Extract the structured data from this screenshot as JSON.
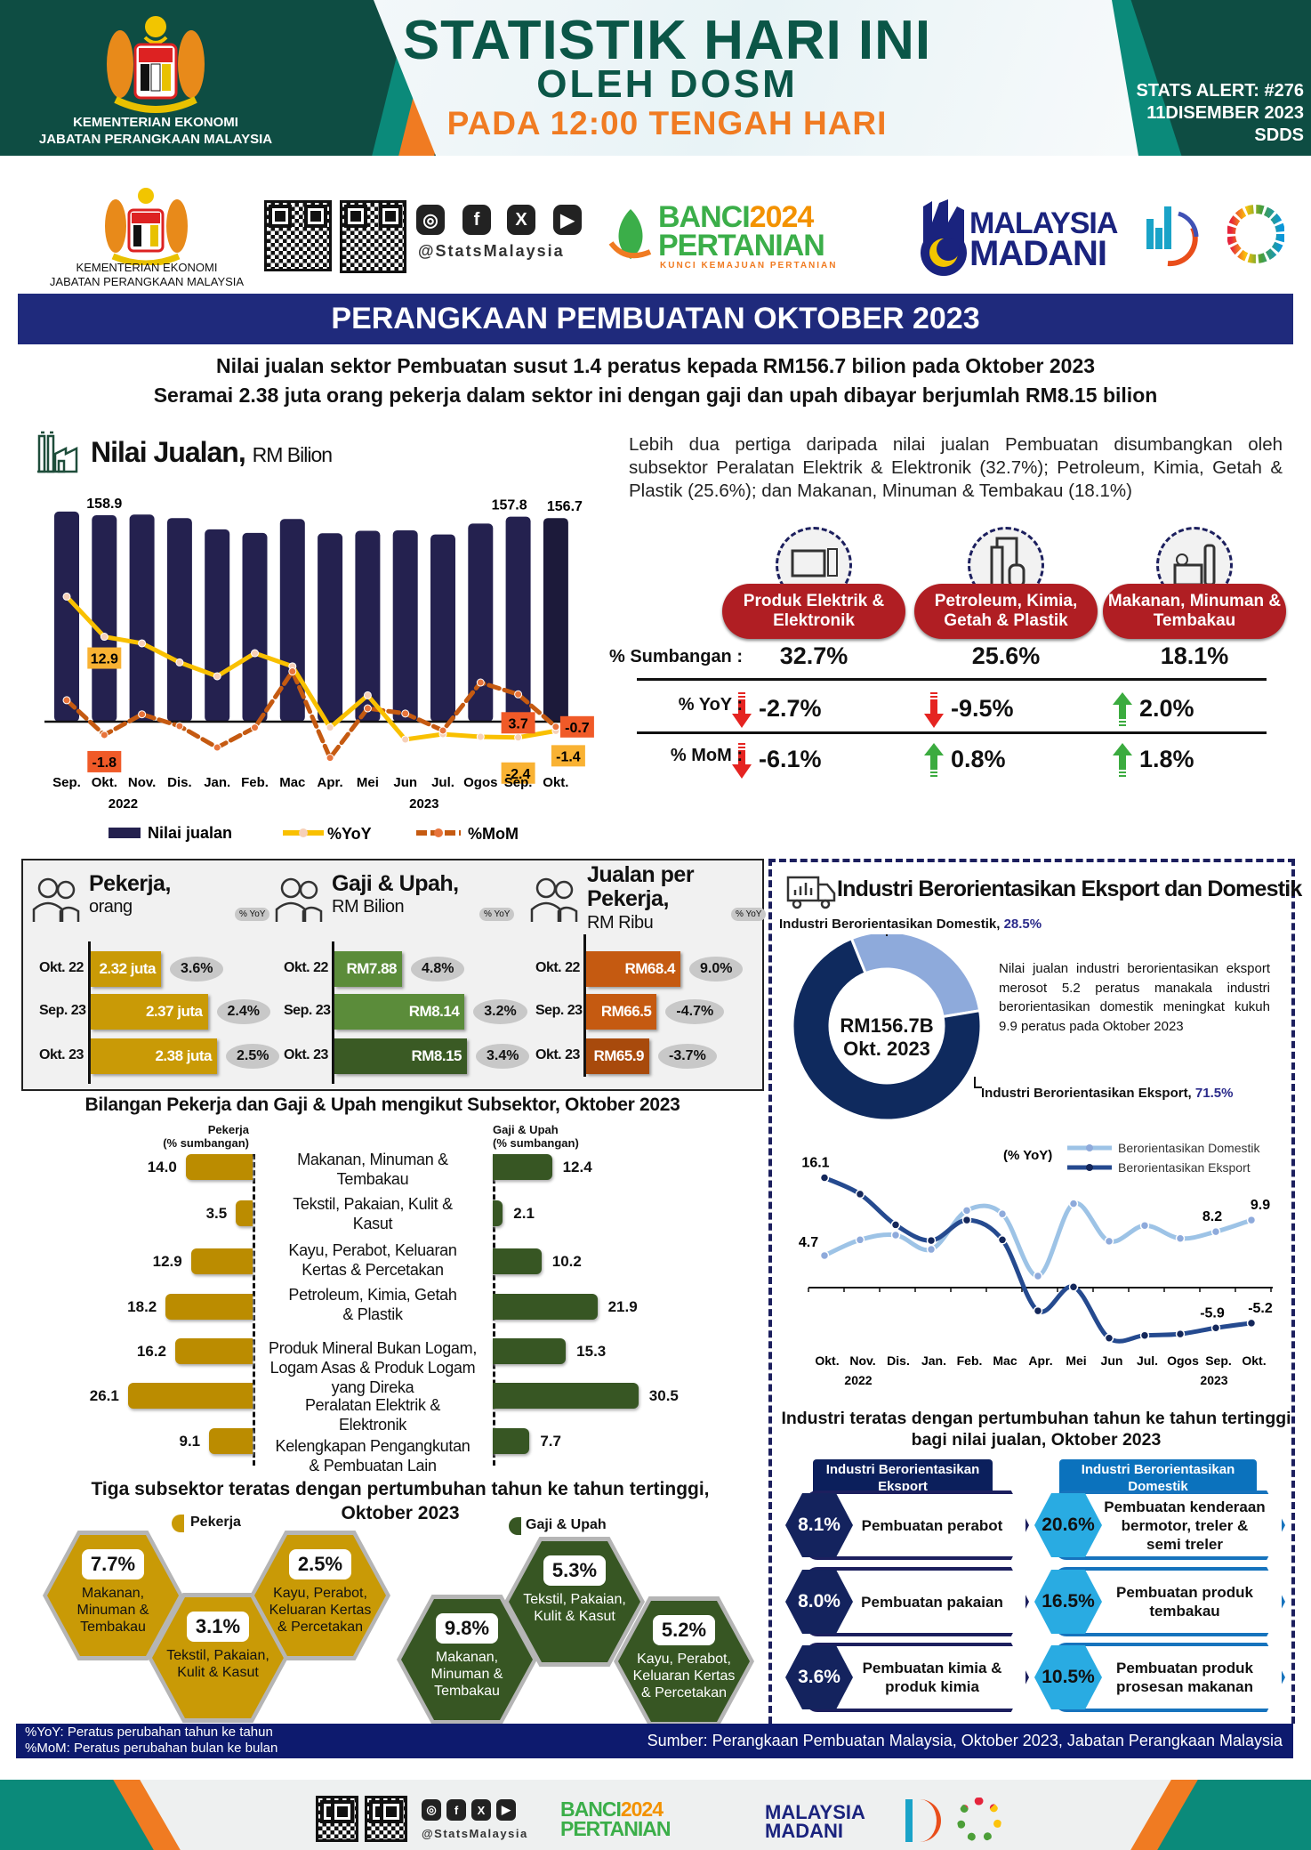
{
  "header": {
    "ministry_line1": "KEMENTERIAN EKONOMI",
    "ministry_line2": "JABATAN PERANGKAAN MALAYSIA",
    "title_line1": "STATISTIK HARI INI",
    "title_line2": "OLEH DOSM",
    "title_line3": "PADA 12:00 TENGAH HARI",
    "alert": "STATS ALERT: #276",
    "date": "11DISEMBER 2023",
    "sdds": "SDDS"
  },
  "logos": {
    "ministry_line1": "KEMENTERIAN EKONOMI",
    "ministry_line2": "JABATAN PERANGKAAN MALAYSIA",
    "handle": "@StatsMalaysia",
    "banci_word": "BANCI",
    "banci_year": "2024",
    "banci_name": "PERTANIAN",
    "banci_tagline": "KUNCI KEMAJUAN PERTANIAN",
    "madani_line1": "MALAYSIA",
    "madani_line2": "MADANI"
  },
  "main_title": "PERANGKAAN PEMBUATAN OKTOBER 2023",
  "headlines": [
    "Nilai jualan sektor Pembuatan susut 1.4 peratus kepada RM156.7 bilion pada Oktober 2023",
    "Seramai 2.38 juta orang pekerja dalam sektor ini dengan gaji dan upah dibayar berjumlah RM8.15 bilion"
  ],
  "sales": {
    "title": "Nilai Jualan,",
    "unit": "RM Bilion",
    "legend": [
      "Nilai jualan",
      "%YoY",
      "%MoM"
    ]
  },
  "subsector_summary": {
    "text": "Lebih dua pertiga daripada nilai jualan Pembuatan disumbangkan oleh subsektor Peralatan Elektrik & Elektronik (32.7%); Petroleum, Kimia, Getah & Plastik (25.6%); dan Makanan, Minuman & Tembakau (18.1%)",
    "row_labels": [
      "% Sumbangan :",
      "% YoY :",
      "% MoM :"
    ],
    "categories": [
      {
        "name": "Produk  Elektrik & Elektronik",
        "share": "32.7%",
        "yoy": "-2.7%",
        "yoy_dir": "down",
        "mom": "-6.1%",
        "mom_dir": "down"
      },
      {
        "name": "Petroleum, Kimia, Getah & Plastik",
        "share": "25.6%",
        "yoy": "-9.5%",
        "yoy_dir": "down",
        "mom": "0.8%",
        "mom_dir": "up"
      },
      {
        "name": "Makanan, Minuman & Tembakau",
        "share": "18.1%",
        "yoy": "2.0%",
        "yoy_dir": "up",
        "mom": "1.8%",
        "mom_dir": "up"
      }
    ]
  },
  "kpi": {
    "yoy_tag": "% YoY",
    "columns": [
      {
        "title": "Pekerja,",
        "unit": "orang",
        "rows": [
          {
            "period": "Okt. 22",
            "value": 2.32,
            "label": "2.32 juta",
            "yoy": "3.6%"
          },
          {
            "period": "Sep. 23",
            "value": 2.37,
            "label": "2.37 juta",
            "yoy": "2.4%"
          },
          {
            "period": "Okt. 23",
            "value": 2.38,
            "label": "2.38 juta",
            "yoy": "2.5%"
          }
        ]
      },
      {
        "title": "Gaji & Upah,",
        "unit": "RM Bilion",
        "rows": [
          {
            "period": "Okt. 22",
            "value": 7.88,
            "label": "RM7.88",
            "yoy": "4.8%"
          },
          {
            "period": "Sep. 23",
            "value": 8.14,
            "label": "RM8.14",
            "yoy": "3.2%"
          },
          {
            "period": "Okt. 23",
            "value": 8.15,
            "label": "RM8.15",
            "yoy": "3.4%"
          }
        ]
      },
      {
        "title": "Jualan per Pekerja,",
        "unit": "RM Ribu",
        "rows": [
          {
            "period": "Okt. 22",
            "value": 68.4,
            "label": "RM68.4",
            "yoy": "9.0%"
          },
          {
            "period": "Sep. 23",
            "value": 66.5,
            "label": "RM66.5",
            "yoy": "-4.7%"
          },
          {
            "period": "Okt. 23",
            "value": 65.9,
            "label": "RM65.9",
            "yoy": "-3.7%"
          }
        ]
      }
    ]
  },
  "top3": {
    "title": "Tiga subsektor teratas dengan pertumbuhan tahun ke tahun tertinggi, Oktober 2023",
    "pekerja_legend": "Pekerja",
    "gaji_legend": "Gaji & Upah",
    "pekerja": [
      {
        "pct": "7.7%",
        "name": "Makanan, Minuman & Tembakau"
      },
      {
        "pct": "3.1%",
        "name": "Tekstil, Pakaian, Kulit & Kasut"
      },
      {
        "pct": "2.5%",
        "name": "Kayu, Perabot, Keluaran Kertas & Percetakan"
      }
    ],
    "gaji": [
      {
        "pct": "9.8%",
        "name": "Makanan, Minuman & Tembakau"
      },
      {
        "pct": "5.3%",
        "name": "Tekstil, Pakaian, Kulit & Kasut"
      },
      {
        "pct": "5.2%",
        "name": "Kayu, Perabot, Keluaran Kertas & Percetakan"
      }
    ]
  },
  "export_domestic": {
    "title": "Industri Berorientasikan Eksport dan Domestik",
    "domestic_label": "Industri Berorientasikan Domestik,",
    "domestic_share": "28.5%",
    "export_label": "Industri Berorientasikan Eksport,",
    "export_share": "71.5%",
    "donut_center_line1": "RM156.7B",
    "donut_center_line2": "Okt. 2023",
    "note": "Nilai jualan industri berorientasikan eksport merosot 5.2 peratus manakala industri berorientasikan domestik meningkat kukuh 9.9 peratus pada Oktober 2023"
  },
  "top_industries": {
    "title": "Industri teratas dengan pertumbuhan tahun ke tahun tertinggi bagi nilai jualan, Oktober 2023",
    "export_header": "Industri Berorientasikan Eksport",
    "domestic_header": "Industri Berorientasikan Domestik",
    "export": [
      {
        "pct": "8.1%",
        "name": "Pembuatan perabot"
      },
      {
        "pct": "8.0%",
        "name": "Pembuatan pakaian"
      },
      {
        "pct": "3.6%",
        "name": "Pembuatan kimia & produk kimia"
      }
    ],
    "domestic": [
      {
        "pct": "20.6%",
        "name": "Pembuatan kenderaan bermotor, treler & semi treler"
      },
      {
        "pct": "16.5%",
        "name": "Pembuatan produk tembakau"
      },
      {
        "pct": "10.5%",
        "name": "Pembuatan produk prosesan makanan"
      }
    ]
  },
  "footer": {
    "yoy_note": "%YoY: Peratus perubahan tahun ke tahun",
    "mom_note": "%MoM: Peratus perubahan bulan ke bulan",
    "source": "Sumber: Perangkaan Pembuatan Malaysia, Oktober 2023, Jabatan Perangkaan Malaysia"
  },
  "colors": {
    "navy": "#1f2a7c",
    "bar": "#24214f",
    "yoy": "#f9c000",
    "mom": "#c55a11",
    "export": "#254a8f",
    "domestic": "#9dc3e6",
    "gold": "#bb8c00",
    "green": "#375623",
    "red": "#b01e23"
  },
  "chart_data": [
    {
      "type": "bar+line",
      "title": "Nilai Jualan, RM Bilion",
      "categories": [
        "Sep.",
        "Okt.",
        "Nov.",
        "Dis.",
        "Jan.",
        "Feb.",
        "Mac",
        "Apr.",
        "Mei",
        "Jun",
        "Jul.",
        "Ogos",
        "Sep.",
        "Okt."
      ],
      "year_labels": [
        {
          "index": 2,
          "text": "2022"
        },
        {
          "index": 10,
          "text": "2023"
        }
      ],
      "series": [
        {
          "name": "Nilai jualan",
          "kind": "bar",
          "values": [
            161.7,
            158.9,
            159.4,
            156.7,
            148.0,
            145.3,
            156.0,
            145.0,
            146.9,
            147.3,
            144.1,
            152.5,
            157.8,
            156.7
          ],
          "labeled": [
            1,
            12,
            13
          ]
        },
        {
          "name": "%YoY",
          "kind": "line",
          "values": [
            19.0,
            12.9,
            11.9,
            9.0,
            6.9,
            10.4,
            8.4,
            -0.9,
            4.0,
            -2.7,
            -1.9,
            -2.3,
            -2.4,
            -1.4
          ],
          "labeled": [
            1,
            12,
            13
          ]
        },
        {
          "name": "%MoM",
          "kind": "line-dashed",
          "values": [
            2.9,
            -1.8,
            1.0,
            -0.6,
            -3.5,
            -0.8,
            6.8,
            -4.9,
            1.8,
            1.1,
            -1.2,
            5.3,
            3.7,
            -0.7
          ],
          "labeled": [
            1,
            12,
            13
          ]
        }
      ],
      "legend": "bottom"
    },
    {
      "type": "bar",
      "title": "Bilangan Pekerja dan Gaji & Upah mengikut Subsektor, Oktober 2023",
      "left_header": [
        "Pekerja",
        "(% sumbangan)"
      ],
      "right_header": [
        "Gaji & Upah",
        "(% sumbangan)"
      ],
      "categories": [
        [
          "Makanan, Minuman &",
          "Tembakau"
        ],
        [
          "Tekstil, Pakaian, Kulit &",
          "Kasut"
        ],
        [
          "Kayu, Perabot, Keluaran",
          "Kertas & Percetakan"
        ],
        [
          "Petroleum, Kimia, Getah",
          "& Plastik"
        ],
        [
          "Produk Mineral Bukan Logam,",
          "Logam Asas & Produk Logam",
          "yang Direka"
        ],
        [
          "Peralatan Elektrik &",
          "Elektronik"
        ],
        [
          "Kelengkapan Pengangkutan",
          "& Pembuatan Lain"
        ]
      ],
      "series": [
        {
          "name": "Pekerja (% sumbangan)",
          "values": [
            14.0,
            3.5,
            12.9,
            18.2,
            16.2,
            26.1,
            9.1
          ]
        },
        {
          "name": "Gaji & Upah (% sumbangan)",
          "values": [
            12.4,
            2.1,
            10.2,
            21.9,
            15.3,
            30.5,
            7.7
          ]
        }
      ]
    },
    {
      "type": "line",
      "ylabel": "(% YoY)",
      "categories": [
        "Okt.",
        "Nov.",
        "Dis.",
        "Jan.",
        "Feb.",
        "Mac",
        "Apr.",
        "Mei",
        "Jun",
        "Jul.",
        "Ogos",
        "Sep.",
        "Okt."
      ],
      "year_labels": [
        {
          "index": 1,
          "text": "2022"
        },
        {
          "index": 11,
          "text": "2023"
        }
      ],
      "series": [
        {
          "name": "Berorientasikan Domestik",
          "values": [
            4.7,
            7.0,
            7.7,
            5.6,
            11.3,
            10.8,
            1.7,
            12.3,
            6.8,
            9.1,
            7.2,
            8.2,
            9.9
          ],
          "labeled": [
            0,
            11,
            12
          ]
        },
        {
          "name": "Berorientasikan Eksport",
          "values": [
            16.1,
            13.7,
            9.2,
            6.9,
            9.9,
            7.0,
            -3.4,
            0.1,
            -7.4,
            -7.0,
            -6.8,
            -5.9,
            -5.2
          ],
          "labeled": [
            0,
            11,
            12
          ]
        }
      ],
      "legend": "top-right"
    },
    {
      "type": "pie",
      "title": "RM156.7B Okt. 2023",
      "slices": [
        {
          "name": "Industri Berorientasikan Domestik",
          "value": 28.5
        },
        {
          "name": "Industri Berorientasikan Eksport",
          "value": 71.5
        }
      ]
    }
  ]
}
